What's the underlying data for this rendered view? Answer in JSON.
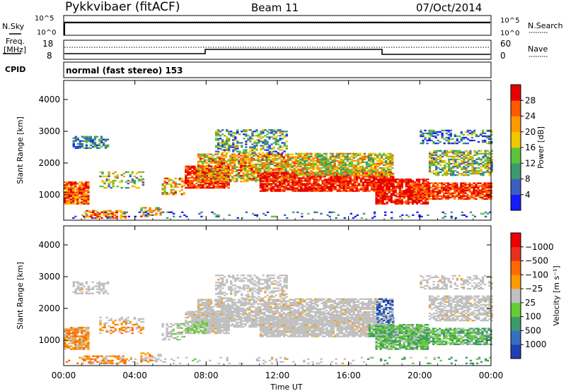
{
  "header": {
    "station": "Pykkvibaer (fitACF)",
    "beam": "Beam 11",
    "date": "07/Oct/2014"
  },
  "noise_panel": {
    "left_label": "N.Sky",
    "right_label": "N.Search",
    "ticks_left": [
      "10^5",
      "10^0"
    ],
    "ticks_right": [
      "10^5",
      "10^0"
    ]
  },
  "freq_panel": {
    "left_label_line1": "Freq.",
    "left_label_line2": "[MHz]",
    "right_label": "Nave",
    "ticks_left": [
      "18",
      "8"
    ],
    "ticks_right": [
      "60",
      "0"
    ]
  },
  "cpid": {
    "label": "CPID",
    "value": "normal (fast stereo) 153"
  },
  "chart_data": [
    {
      "type": "heatmap",
      "name": "power",
      "ylabel": "Slant Range [km]",
      "ylim": [
        200,
        4600
      ],
      "yticks": [
        "1000",
        "2000",
        "3000",
        "4000"
      ],
      "xlim": [
        0,
        24
      ],
      "colorbar_label": "Power [dB]",
      "colorbar_ticks": [
        "4",
        "8",
        "12",
        "16",
        "20",
        "24",
        "28"
      ],
      "colorbar_colors": [
        "#1a1aff",
        "#3b5fbf",
        "#3c9a6b",
        "#5fc23c",
        "#f0c800",
        "#ff9a00",
        "#ff5a00",
        "#e80000"
      ]
    },
    {
      "type": "heatmap",
      "name": "velocity",
      "ylabel": "Slant Range [km]",
      "ylim": [
        200,
        4600
      ],
      "yticks": [
        "1000",
        "2000",
        "3000",
        "4000"
      ],
      "xlim": [
        0,
        24
      ],
      "xticks": [
        "00:00",
        "04:00",
        "08:00",
        "12:00",
        "16:00",
        "20:00",
        "00:00"
      ],
      "xlabel": "Time UT",
      "colorbar_label": "Velocity [m s⁻¹]",
      "colorbar_ticks": [
        "1000",
        "500",
        "100",
        "25",
        "−25",
        "−100",
        "−500",
        "−1000"
      ],
      "colorbar_colors": [
        "#2040b0",
        "#3570c0",
        "#3c9a6b",
        "#66cc33",
        "#c0c0c0",
        "#ff9a00",
        "#ff6a00",
        "#e83020",
        "#ee0000"
      ]
    }
  ]
}
